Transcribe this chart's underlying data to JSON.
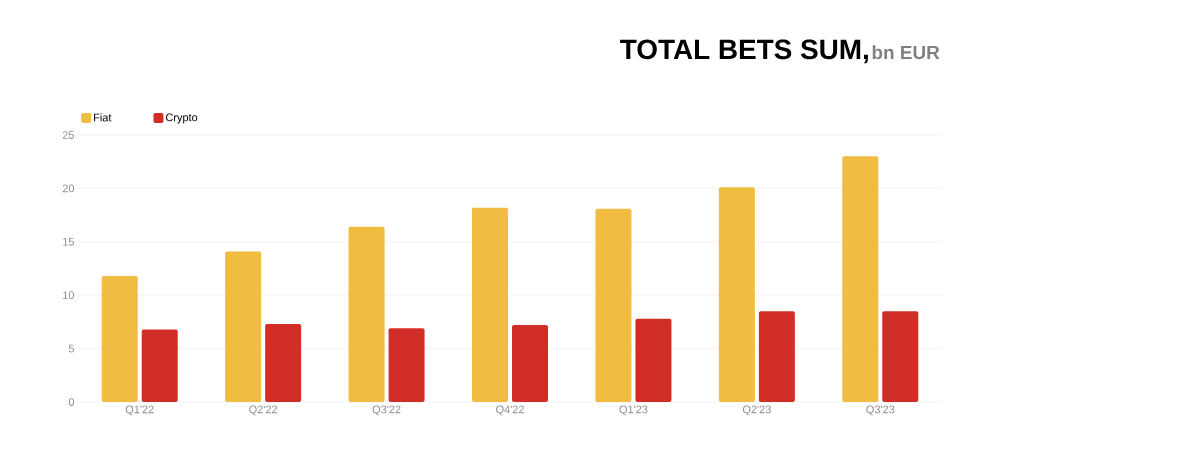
{
  "chart_data": {
    "type": "bar",
    "title": "TOTAL BETS SUM,",
    "subtitle": "bn EUR",
    "categories": [
      "Q1'22",
      "Q2'22",
      "Q3'22",
      "Q4'22",
      "Q1'23",
      "Q2'23",
      "Q3'23"
    ],
    "series": [
      {
        "name": "Fiat",
        "color": "#f0bc42",
        "values": [
          11.8,
          14.1,
          16.4,
          18.2,
          18.1,
          20.1,
          23.0
        ]
      },
      {
        "name": "Crypto",
        "color": "#d12e28",
        "values": [
          6.8,
          7.3,
          6.9,
          7.2,
          7.8,
          8.5,
          8.5
        ]
      }
    ],
    "ylim": [
      0,
      25
    ],
    "yticks": [
      0,
      5,
      10,
      15,
      20,
      25
    ],
    "grid": "y",
    "legend": "top left"
  }
}
